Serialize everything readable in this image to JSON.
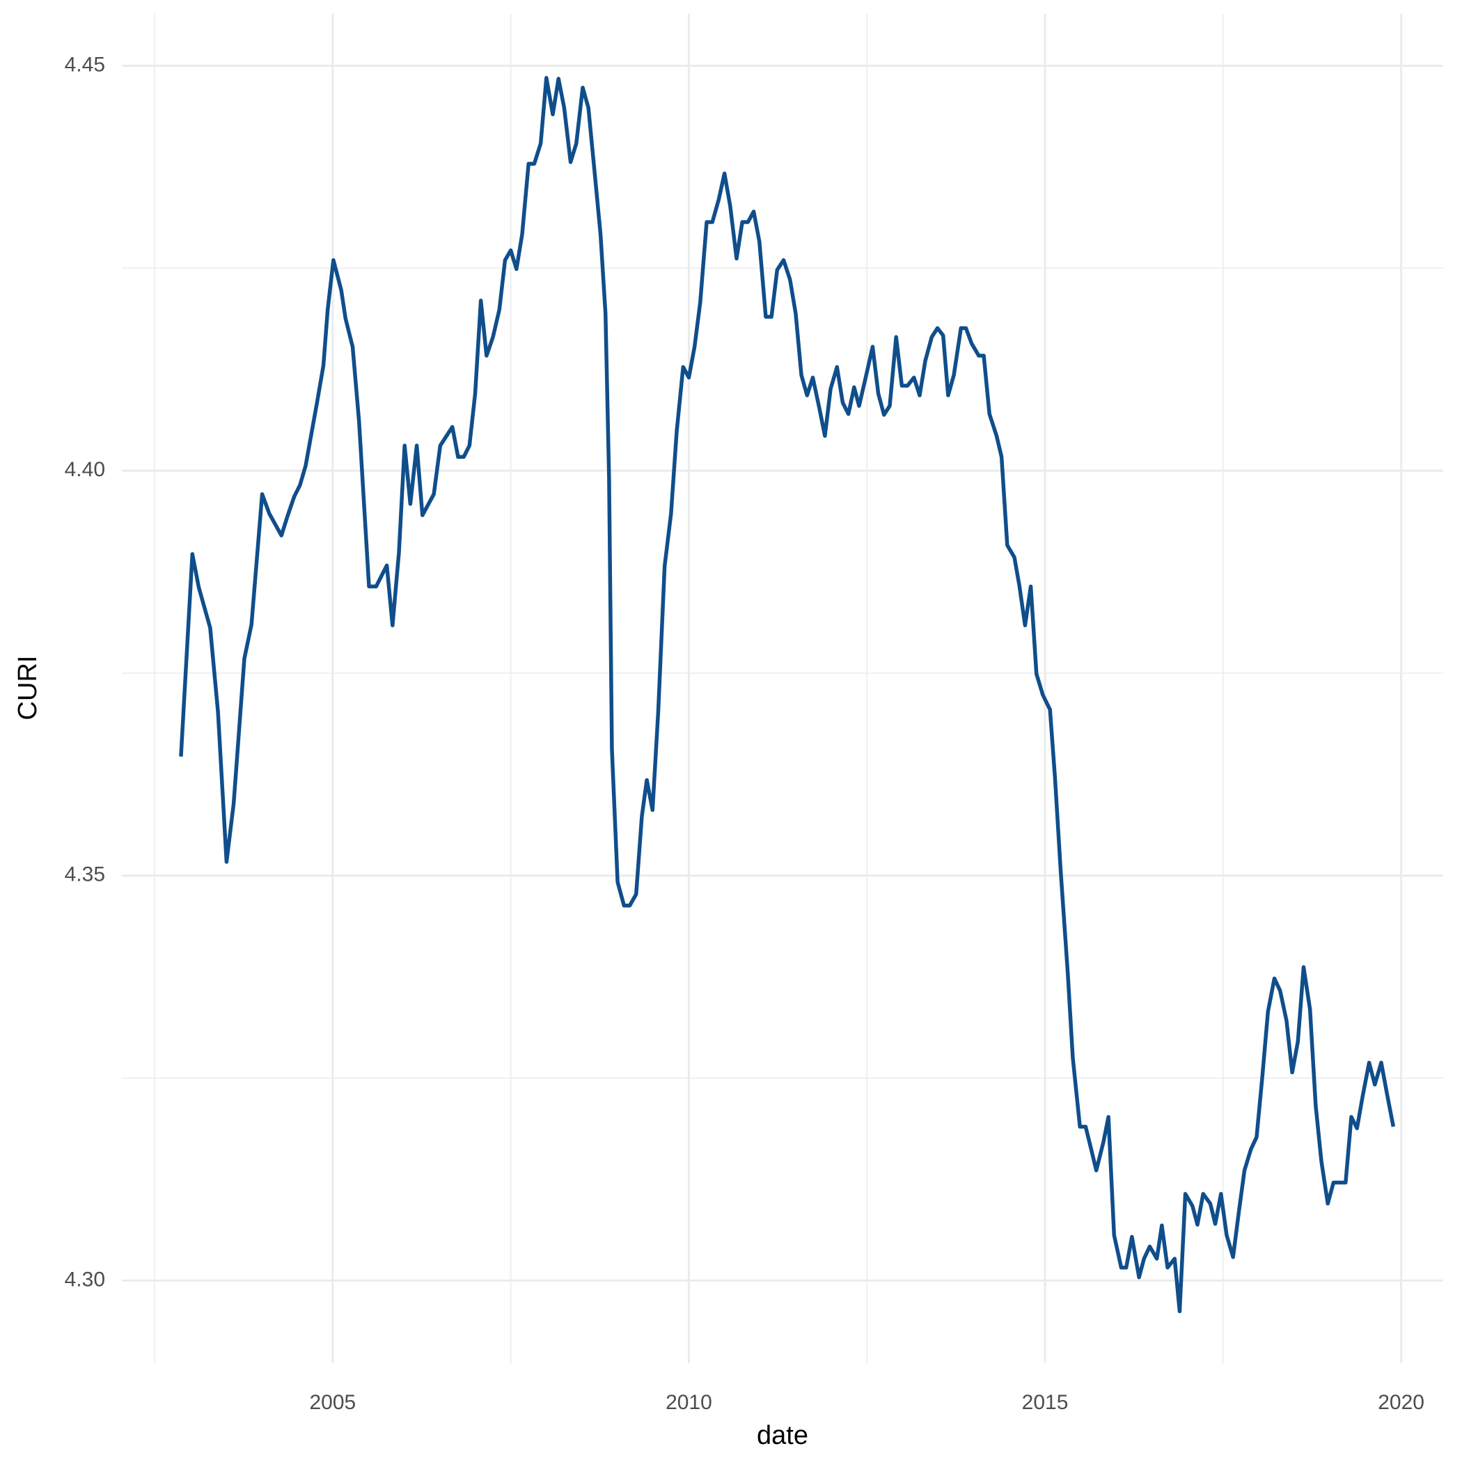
{
  "chart_data": {
    "type": "line",
    "x_label": "date",
    "y_label": "CURI",
    "xlim": [
      2002.04,
      2020.59
    ],
    "ylim": [
      4.2898,
      4.4564
    ],
    "xticks": [
      2005,
      2010,
      2015,
      2020
    ],
    "yticks": [
      {
        "value": 4.3,
        "label": "4.30"
      },
      {
        "value": 4.35,
        "label": "4.35"
      },
      {
        "value": 4.4,
        "label": "4.40"
      },
      {
        "value": 4.45,
        "label": "4.45"
      }
    ],
    "grid": true,
    "series": [
      {
        "name": "CURI",
        "color": "#104e8b",
        "x": [
          2002.87,
          2003.03,
          2003.12,
          2003.28,
          2003.39,
          2003.51,
          2003.61,
          2003.76,
          2003.86,
          2004.01,
          2004.11,
          2004.28,
          2004.37,
          2004.46,
          2004.54,
          2004.62,
          2004.78,
          2004.87,
          2004.93,
          2005.01,
          2005.12,
          2005.18,
          2005.28,
          2005.37,
          2005.51,
          2005.61,
          2005.76,
          2005.84,
          2005.93,
          2006.01,
          2006.09,
          2006.18,
          2006.26,
          2006.42,
          2006.51,
          2006.68,
          2006.76,
          2006.84,
          2006.92,
          2007.0,
          2007.08,
          2007.16,
          2007.25,
          2007.34,
          2007.42,
          2007.5,
          2007.58,
          2007.66,
          2007.75,
          2007.83,
          2007.92,
          2008.0,
          2008.09,
          2008.17,
          2008.25,
          2008.34,
          2008.42,
          2008.51,
          2008.59,
          2008.67,
          2008.76,
          2008.83,
          2008.88,
          2008.92,
          2009.0,
          2009.09,
          2009.17,
          2009.26,
          2009.34,
          2009.41,
          2009.49,
          2009.57,
          2009.66,
          2009.75,
          2009.83,
          2009.92,
          2010.0,
          2010.08,
          2010.16,
          2010.25,
          2010.33,
          2010.42,
          2010.5,
          2010.58,
          2010.67,
          2010.75,
          2010.83,
          2010.91,
          2010.99,
          2011.08,
          2011.16,
          2011.24,
          2011.33,
          2011.42,
          2011.5,
          2011.58,
          2011.66,
          2011.74,
          2011.83,
          2011.91,
          2011.99,
          2012.08,
          2012.16,
          2012.24,
          2012.32,
          2012.39,
          2012.49,
          2012.58,
          2012.66,
          2012.74,
          2012.82,
          2012.91,
          2012.99,
          2013.07,
          2013.16,
          2013.24,
          2013.32,
          2013.41,
          2013.49,
          2013.57,
          2013.64,
          2013.72,
          2013.82,
          2013.89,
          2013.97,
          2014.07,
          2014.14,
          2014.22,
          2014.32,
          2014.39,
          2014.47,
          2014.57,
          2014.64,
          2014.72,
          2014.8,
          2014.88,
          2014.97,
          2015.07,
          2015.14,
          2015.22,
          2015.32,
          2015.39,
          2015.49,
          2015.57,
          2015.64,
          2015.72,
          2015.82,
          2015.89,
          2015.97,
          2016.07,
          2016.14,
          2016.22,
          2016.32,
          2016.39,
          2016.47,
          2016.57,
          2016.64,
          2016.72,
          2016.82,
          2016.89,
          2016.97,
          2017.07,
          2017.14,
          2017.22,
          2017.32,
          2017.39,
          2017.47,
          2017.55,
          2017.64,
          2017.72,
          2017.8,
          2017.89,
          2017.97,
          2018.05,
          2018.13,
          2018.22,
          2018.3,
          2018.39,
          2018.47,
          2018.55,
          2018.63,
          2018.72,
          2018.8,
          2018.88,
          2018.97,
          2019.05,
          2019.13,
          2019.22,
          2019.3,
          2019.38,
          2019.46,
          2019.55,
          2019.63,
          2019.72,
          2019.8,
          2019.89
        ],
        "values": [
          4.3647,
          4.3897,
          4.3856,
          4.3806,
          4.3702,
          4.3517,
          4.3589,
          4.3768,
          4.381,
          4.3971,
          4.3947,
          4.392,
          4.3945,
          4.3968,
          4.3982,
          4.4006,
          4.4084,
          4.413,
          4.4199,
          4.426,
          4.4223,
          4.4188,
          4.4153,
          4.4061,
          4.3857,
          4.3857,
          4.3883,
          4.3809,
          4.3899,
          4.4031,
          4.3959,
          4.4031,
          4.3945,
          4.3971,
          4.4031,
          4.4054,
          4.4017,
          4.4017,
          4.4031,
          4.4095,
          4.421,
          4.4142,
          4.4165,
          4.4199,
          4.426,
          4.4272,
          4.4249,
          4.4292,
          4.4379,
          4.4379,
          4.4404,
          4.4485,
          4.444,
          4.4484,
          4.4448,
          4.4381,
          4.4404,
          4.4473,
          4.4448,
          4.4375,
          4.4292,
          4.4194,
          4.3991,
          4.3656,
          4.3492,
          4.3463,
          4.3463,
          4.3477,
          4.3573,
          4.3618,
          4.3581,
          4.3702,
          4.3882,
          4.3947,
          4.4049,
          4.4128,
          4.4115,
          4.4153,
          4.4208,
          4.4307,
          4.4307,
          4.4335,
          4.4367,
          4.4327,
          4.4262,
          4.4307,
          4.4307,
          4.432,
          4.4283,
          4.419,
          4.419,
          4.4248,
          4.426,
          4.4236,
          4.4194,
          4.4118,
          4.4093,
          4.4115,
          4.4078,
          4.4043,
          4.4101,
          4.4128,
          4.4084,
          4.407,
          4.4103,
          4.408,
          4.4118,
          4.4153,
          4.4095,
          4.4069,
          4.408,
          4.4165,
          4.4105,
          4.4105,
          4.4115,
          4.4093,
          4.4136,
          4.4165,
          4.4176,
          4.4167,
          4.4093,
          4.4118,
          4.4176,
          4.4176,
          4.4157,
          4.4142,
          4.4142,
          4.407,
          4.4043,
          4.4017,
          4.3908,
          4.3893,
          4.3858,
          4.3809,
          4.3857,
          4.3749,
          4.3723,
          4.3705,
          4.3621,
          4.3506,
          4.3379,
          4.3275,
          4.319,
          4.319,
          4.3165,
          4.3136,
          4.3171,
          4.3202,
          4.3056,
          4.3016,
          4.3016,
          4.3054,
          4.3004,
          4.3027,
          4.3042,
          4.3027,
          4.3068,
          4.3016,
          4.3027,
          4.2962,
          4.3107,
          4.3092,
          4.3069,
          4.3107,
          4.3095,
          4.307,
          4.3107,
          4.3056,
          4.3029,
          4.3084,
          4.3136,
          4.3162,
          4.3177,
          4.3251,
          4.3332,
          4.3373,
          4.3358,
          4.3321,
          4.3257,
          4.3295,
          4.3387,
          4.3335,
          4.3216,
          4.3147,
          4.3095,
          4.3121,
          4.3121,
          4.3121,
          4.3202,
          4.3188,
          4.3228,
          4.3269,
          4.3242,
          4.3269,
          4.3231,
          4.319
        ]
      }
    ]
  }
}
